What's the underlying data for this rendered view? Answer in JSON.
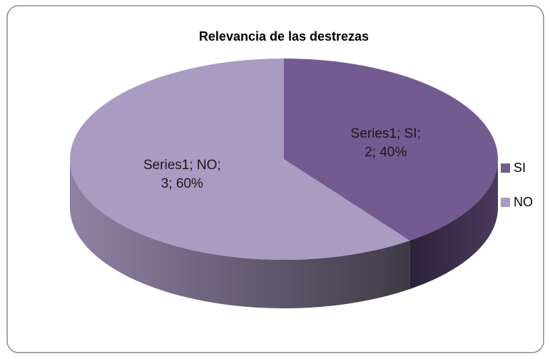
{
  "chart_data": {
    "type": "pie3d",
    "title": "Relevancia de las destrezas",
    "categories": [
      "SI",
      "NO"
    ],
    "series": [
      {
        "name": "Series1",
        "colors": [
          "#735a91",
          "#a99bc2"
        ],
        "values": [
          2,
          3
        ],
        "value_labels": [
          "Series1; SI;\n2; 40%",
          "Series1; NO;\n3; 60%"
        ]
      }
    ],
    "legend": "right"
  }
}
